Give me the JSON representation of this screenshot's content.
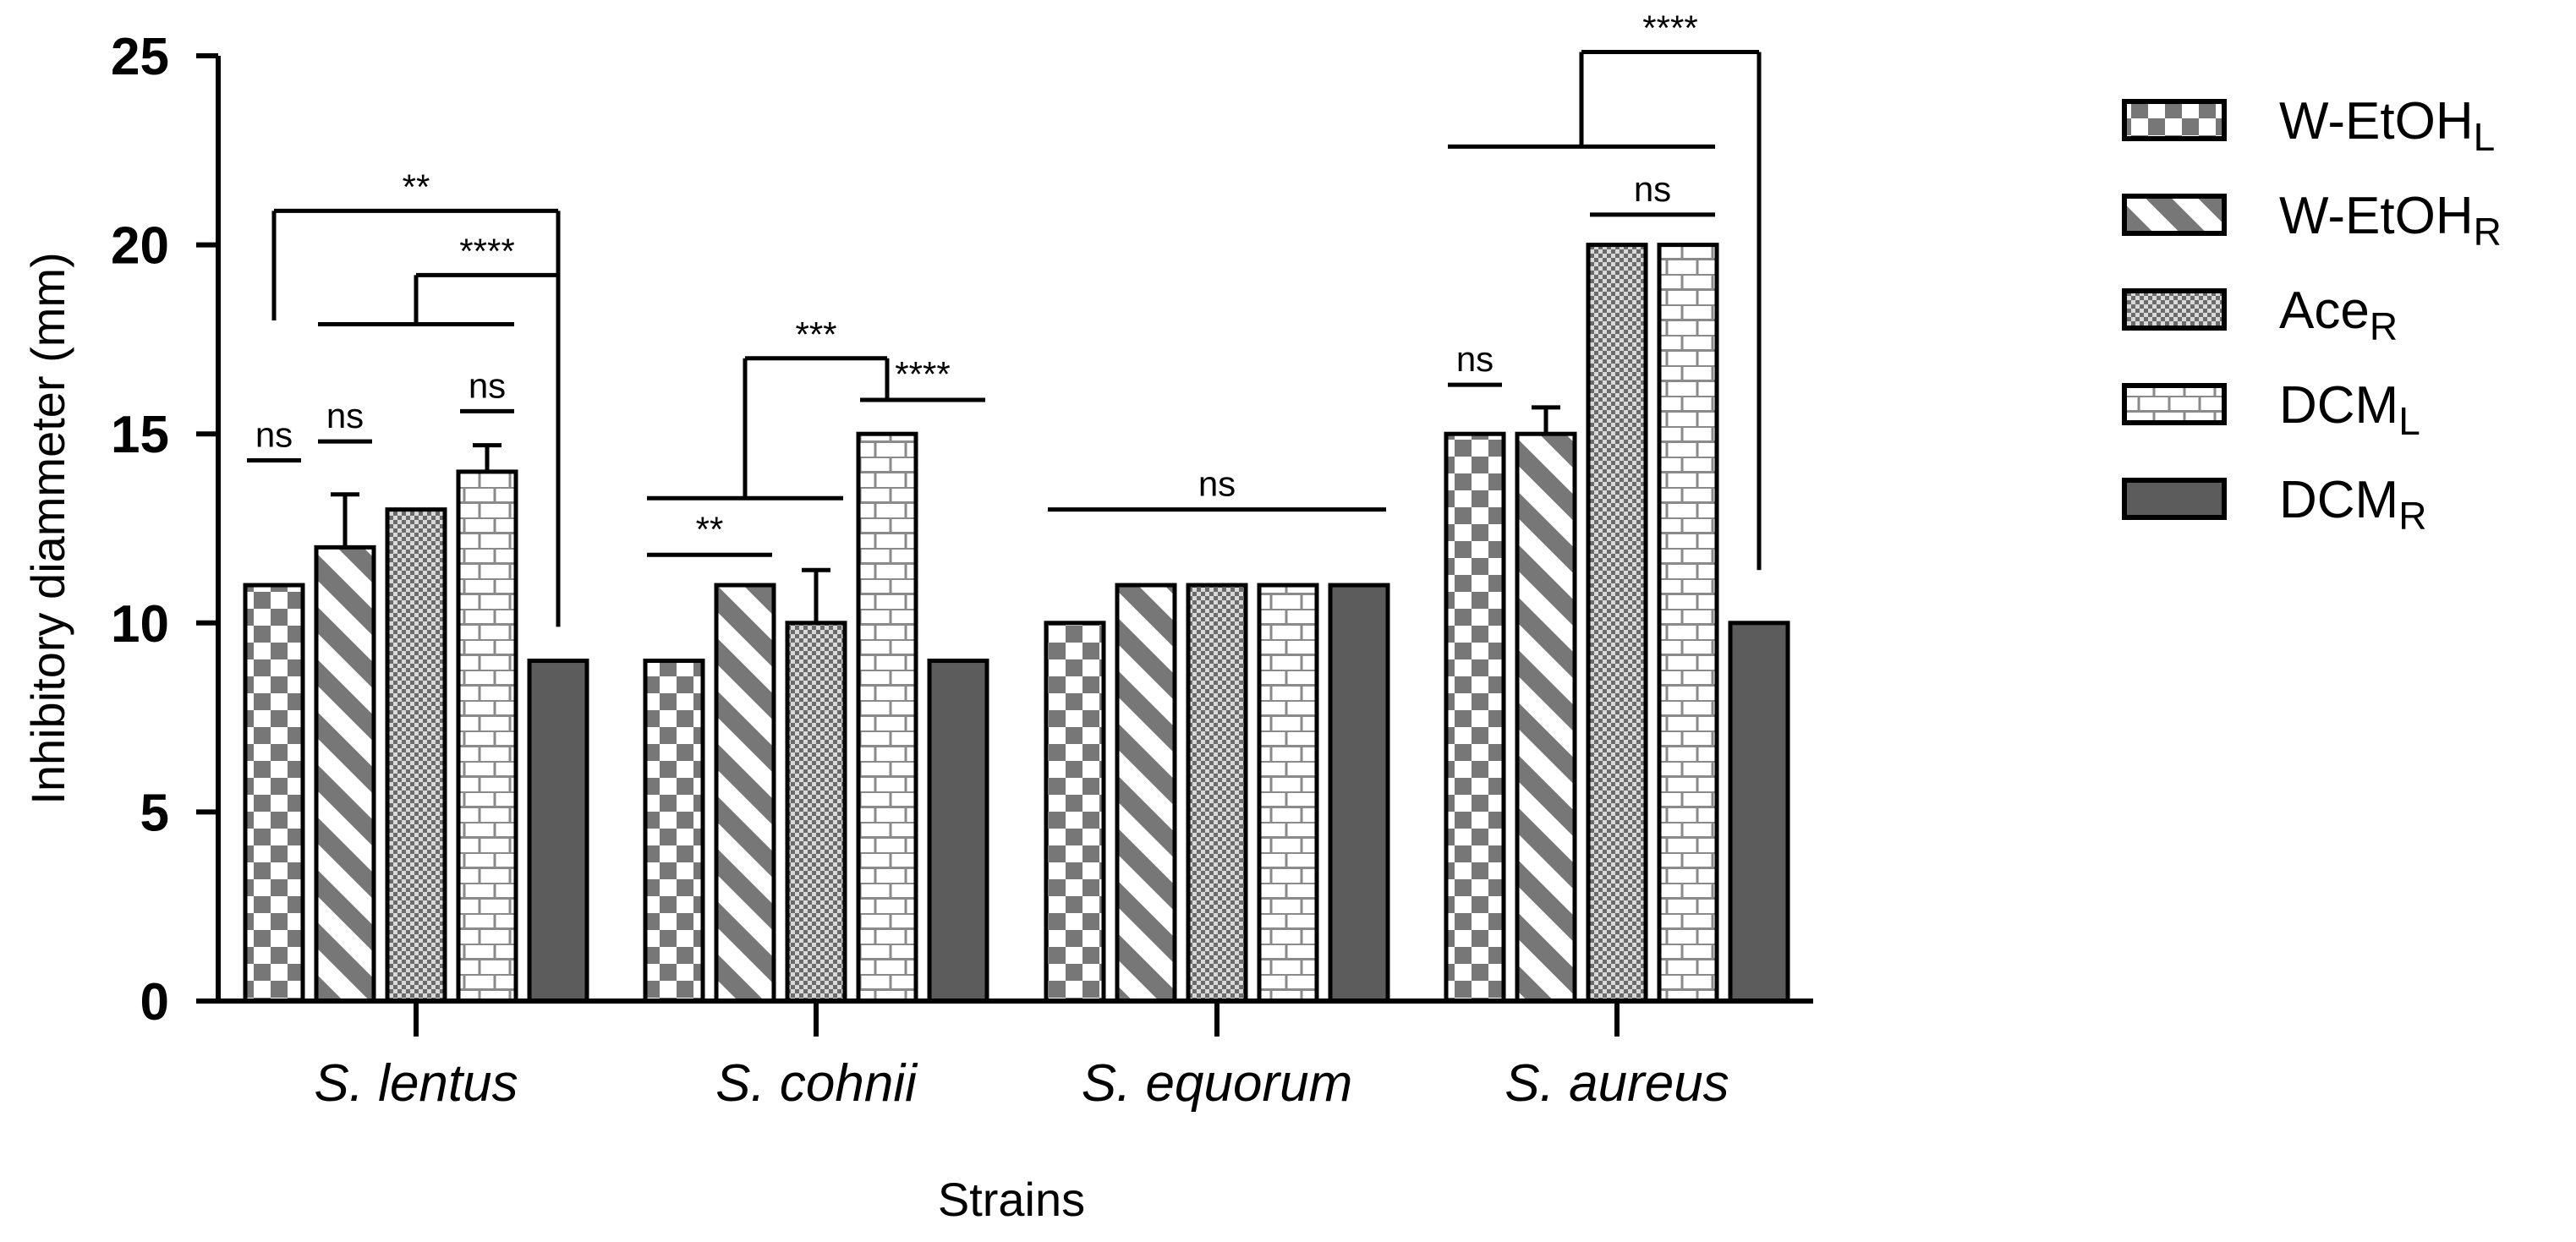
{
  "chart_data": {
    "type": "bar",
    "xlabel": "Strains",
    "ylabel": "Inhibitory diammeter (mm)",
    "ylim": [
      0,
      25
    ],
    "yticks": [
      "0",
      "5",
      "10",
      "15",
      "20",
      "25"
    ],
    "categories": [
      "S. lentus",
      "S. cohnii",
      "S. equorum",
      "S. aureus"
    ],
    "legend_position": "right",
    "grid": false,
    "series": [
      {
        "name": "W-EtOH",
        "subscript": "L",
        "pattern": "checker",
        "values": [
          11,
          9,
          10,
          15
        ],
        "errors": [
          0,
          0,
          0,
          0
        ]
      },
      {
        "name": "W-EtOH",
        "subscript": "R",
        "pattern": "diagonal",
        "values": [
          12,
          11,
          11,
          15
        ],
        "errors": [
          1.4,
          0,
          0,
          0.7
        ]
      },
      {
        "name": "Ace",
        "subscript": "R",
        "pattern": "fine-checker",
        "values": [
          13,
          10,
          11,
          20
        ],
        "errors": [
          0,
          1.4,
          0,
          0
        ]
      },
      {
        "name": "DCM",
        "subscript": "L",
        "pattern": "brick",
        "values": [
          14,
          15,
          11,
          20
        ],
        "errors": [
          0.7,
          0,
          0,
          0
        ]
      },
      {
        "name": "DCM",
        "subscript": "R",
        "pattern": "solid",
        "values": [
          9,
          9,
          11,
          10
        ],
        "errors": [
          0,
          0,
          0,
          0
        ]
      }
    ],
    "colors": {
      "fill": "#666666",
      "dark": "#5c5c5c",
      "edge": "#000000"
    },
    "significance": [
      {
        "group": "S. lentus",
        "label": "ns",
        "kind": "line-over",
        "bars": [
          0
        ],
        "level": 14.3
      },
      {
        "group": "S. lentus",
        "label": "ns",
        "kind": "line-over",
        "bars": [
          1
        ],
        "level": 14.8
      },
      {
        "group": "S. lentus",
        "label": "ns",
        "kind": "line-over",
        "bars": [
          3
        ],
        "level": 15.6
      },
      {
        "group": "S. lentus",
        "label": "****",
        "kind": "bracket",
        "from_span": [
          1,
          3
        ],
        "to": 4,
        "level": 19.2,
        "base": 17.9,
        "end_drop": 9.9
      },
      {
        "group": "S. lentus",
        "label": "**",
        "kind": "bracket",
        "from": 0,
        "to": 4,
        "level": 20.9,
        "base": 18.0,
        "end_drop": 9.9
      },
      {
        "group": "S. cohnii",
        "label": "**",
        "kind": "line-over",
        "bars": [
          0,
          1
        ],
        "level": 11.8
      },
      {
        "group": "S. cohnii",
        "label": "***",
        "kind": "bracket",
        "from_span": [
          0,
          2
        ],
        "to": 3,
        "level": 17.0,
        "base": 13.3,
        "end_drop": 15.9
      },
      {
        "group": "S. cohnii",
        "label": "****",
        "kind": "line-over",
        "bars": [
          3,
          4
        ],
        "level": 15.9
      },
      {
        "group": "S. equorum",
        "label": "ns",
        "kind": "line-over",
        "bars": [
          0,
          4
        ],
        "level": 13.0
      },
      {
        "group": "S. aureus",
        "label": "ns",
        "kind": "line-over",
        "bars": [
          0
        ],
        "level": 16.3
      },
      {
        "group": "S. aureus",
        "label": "ns",
        "kind": "line-over",
        "bars": [
          2,
          3
        ],
        "level": 20.8
      },
      {
        "group": "S. aureus",
        "label": "****",
        "kind": "bracket",
        "from_span": [
          0,
          3
        ],
        "to": 4,
        "level": 25.1,
        "base": 22.6,
        "end_drop": 11.4
      }
    ]
  }
}
